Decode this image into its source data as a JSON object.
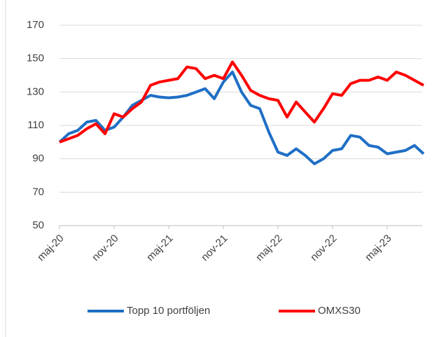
{
  "chart_data": {
    "type": "line",
    "categories": [
      "maj-20",
      null,
      null,
      null,
      null,
      null,
      "nov-20",
      null,
      null,
      null,
      null,
      null,
      "maj-21",
      null,
      null,
      null,
      null,
      null,
      "nov-21",
      null,
      null,
      null,
      null,
      null,
      "maj-22",
      null,
      null,
      null,
      null,
      null,
      "nov-22",
      null,
      null,
      null,
      null,
      null,
      "maj-23",
      null,
      null,
      null,
      null
    ],
    "series": [
      {
        "name": "Topp 10 portföljen",
        "color": "#1f6fc5",
        "values": [
          100,
          105,
          107,
          112,
          113,
          107,
          109,
          115,
          122,
          125,
          128,
          127,
          126.5,
          127,
          128,
          130,
          132,
          126,
          136,
          142,
          130,
          122,
          120,
          106,
          94,
          92,
          96,
          92,
          87,
          90,
          95,
          96,
          104,
          103,
          98,
          97,
          93,
          94,
          95,
          98,
          93
        ]
      },
      {
        "name": "OMXS30",
        "color": "#ff0000",
        "values": [
          100,
          102,
          104,
          108,
          111,
          105,
          117,
          115,
          120,
          124,
          134,
          136,
          137,
          138,
          145,
          144,
          138,
          140,
          138,
          148,
          140,
          131,
          128,
          126,
          125,
          115,
          124,
          118,
          112,
          120,
          129,
          128,
          135,
          137,
          137,
          139,
          137,
          142,
          140,
          137,
          134
        ]
      }
    ],
    "ylim": [
      50,
      170
    ],
    "yticks": [
      50,
      70,
      90,
      110,
      130,
      150,
      170
    ],
    "grid": true,
    "legend": "bottom"
  }
}
